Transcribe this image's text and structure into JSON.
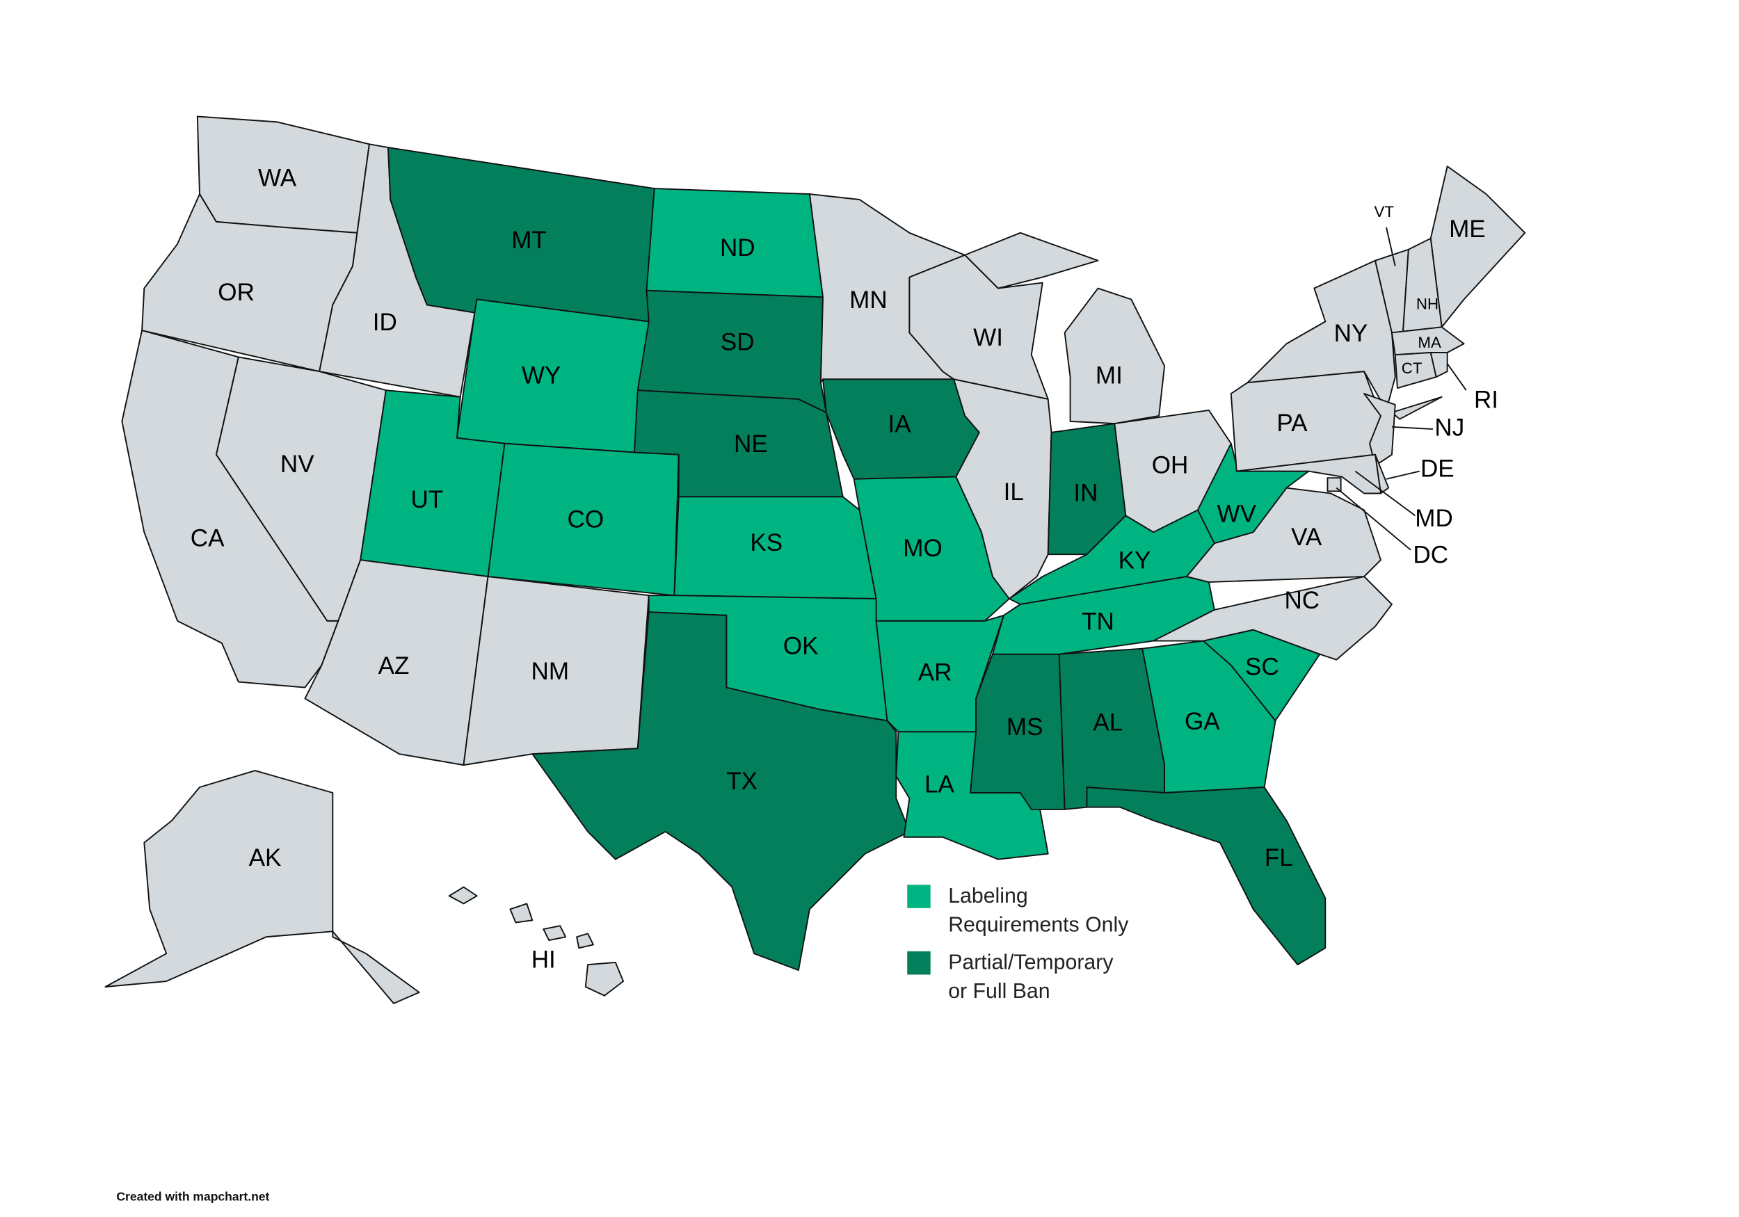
{
  "map": {
    "base_color": "#d3d9dc",
    "legend": [
      {
        "label": [
          "Labeling",
          "Requirements Only"
        ],
        "color": "#00b482"
      },
      {
        "label": [
          "Partial/Temporary",
          "or Full Ban"
        ],
        "color": "#047f5c"
      }
    ],
    "states": [
      {
        "label": "WA",
        "group": null
      },
      {
        "label": "OR",
        "group": null
      },
      {
        "label": "ID",
        "group": null
      },
      {
        "label": "MT",
        "group": 1
      },
      {
        "label": "ND",
        "group": 0
      },
      {
        "label": "WY",
        "group": 0
      },
      {
        "label": "SD",
        "group": 1
      },
      {
        "label": "NV",
        "group": null
      },
      {
        "label": "UT",
        "group": 0
      },
      {
        "label": "CO",
        "group": 0
      },
      {
        "label": "NE",
        "group": 1
      },
      {
        "label": "CA",
        "group": null
      },
      {
        "label": "AZ",
        "group": null
      },
      {
        "label": "NM",
        "group": null
      },
      {
        "label": "KS",
        "group": 0
      },
      {
        "label": "OK",
        "group": 0
      },
      {
        "label": "TX",
        "group": 1
      },
      {
        "label": "MN",
        "group": null
      },
      {
        "label": "IA",
        "group": 1
      },
      {
        "label": "MO",
        "group": 0
      },
      {
        "label": "AR",
        "group": 0
      },
      {
        "label": "LA",
        "group": 0
      },
      {
        "label": "MS",
        "group": 1
      },
      {
        "label": "AL",
        "group": 1
      },
      {
        "label": "WI",
        "group": null
      },
      {
        "label": "IL",
        "group": null
      },
      {
        "label": "MI",
        "group": null
      },
      {
        "label": "IN",
        "group": 1
      },
      {
        "label": "OH",
        "group": null
      },
      {
        "label": "KY",
        "group": 0
      },
      {
        "label": "TN",
        "group": 0
      },
      {
        "label": "GA",
        "group": 0
      },
      {
        "label": "FL",
        "group": 1
      },
      {
        "label": "SC",
        "group": 0
      },
      {
        "label": "NC",
        "group": null
      },
      {
        "label": "VA",
        "group": null
      },
      {
        "label": "WV",
        "group": 0
      },
      {
        "label": "PA",
        "group": null
      },
      {
        "label": "NY",
        "group": null
      },
      {
        "label": "ME",
        "group": null
      },
      {
        "label": "VT",
        "group": null
      },
      {
        "label": "NH",
        "group": null
      },
      {
        "label": "MA",
        "group": null
      },
      {
        "label": "CT",
        "group": null
      },
      {
        "label": "RI",
        "group": null
      },
      {
        "label": "NJ",
        "group": null
      },
      {
        "label": "DE",
        "group": null
      },
      {
        "label": "MD",
        "group": null
      },
      {
        "label": "DC",
        "group": null
      },
      {
        "label": "AK",
        "group": null
      },
      {
        "label": "HI",
        "group": null
      }
    ],
    "credit": "Created with mapchart.net"
  }
}
